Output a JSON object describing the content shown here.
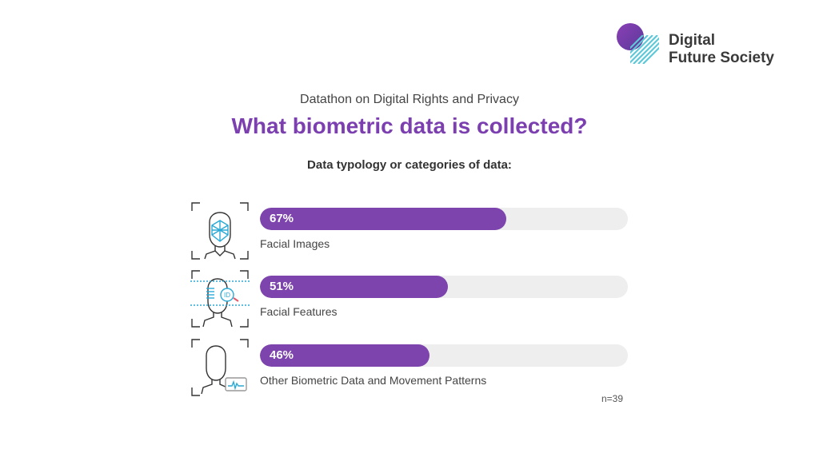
{
  "logo": {
    "line1": "Digital",
    "line2": "Future Society",
    "colors": {
      "circle": "#7b3fb0",
      "stripes": "#5ec8d8"
    }
  },
  "header": {
    "subtitle": "Datathon on Digital Rights and Privacy",
    "title": "What biometric data is collected?",
    "section_label": "Data typology or categories of data:"
  },
  "chart_data": {
    "type": "bar",
    "orientation": "horizontal",
    "categories": [
      "Facial Images",
      "Facial Features",
      "Other Biometric Data and Movement Patterns"
    ],
    "values": [
      67,
      51,
      46
    ],
    "value_labels": [
      "67%",
      "51%",
      "46%"
    ],
    "icons": [
      "face-mesh-icon",
      "face-id-scan-icon",
      "face-movement-icon"
    ],
    "xlim": [
      0,
      100
    ],
    "grid": false,
    "colors": {
      "bar": "#7d44ad",
      "track": "#eeeeee"
    }
  },
  "footnote": "n=39"
}
